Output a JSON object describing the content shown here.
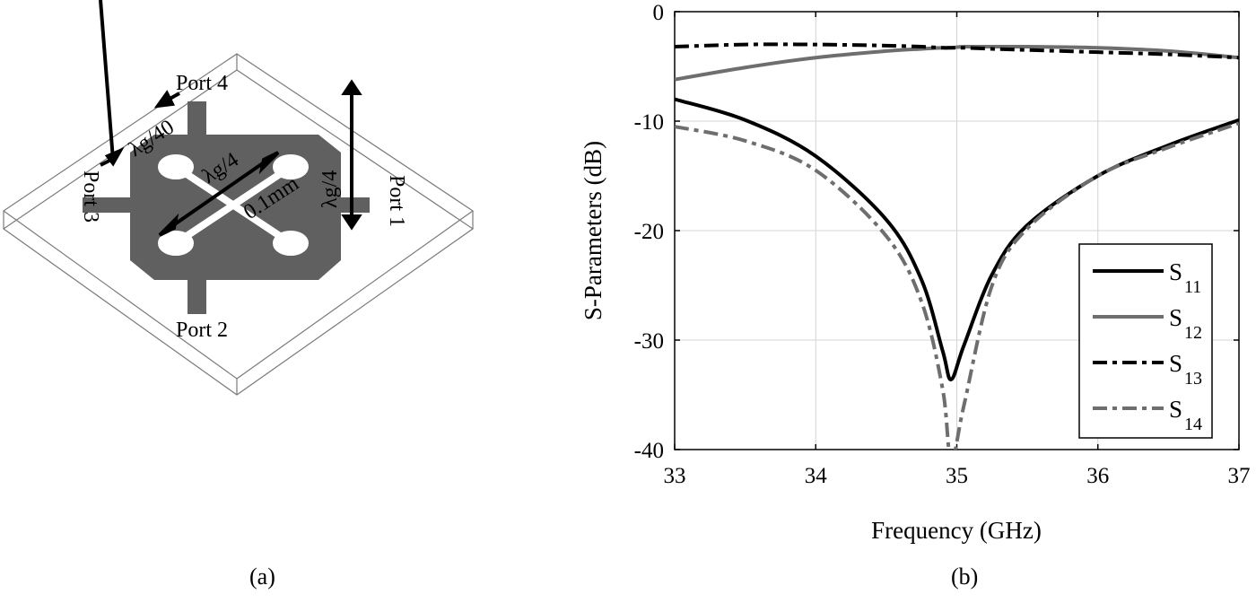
{
  "panel_a": {
    "caption": "(a)",
    "labels": {
      "port1": "Port 1",
      "port2": "Port 2",
      "port3": "Port 3",
      "port4": "Port 4",
      "stub_width": "λg/40",
      "slot_length": "λg/4",
      "side_length": "λg/4",
      "slot_width": "0.1mm"
    },
    "colors": {
      "metal": "#606060",
      "substrate_edge": "#7a7a7a"
    }
  },
  "panel_b": {
    "caption": "(b)"
  },
  "chart_data": {
    "type": "line",
    "title": "",
    "xlabel": "Frequency (GHz)",
    "ylabel": "S-Parameters (dB)",
    "xlim": [
      33,
      37
    ],
    "ylim": [
      -40,
      0
    ],
    "xticks": [
      33,
      34,
      35,
      36,
      37
    ],
    "yticks": [
      0,
      -10,
      -20,
      -30,
      -40
    ],
    "grid": true,
    "legend_position": "lower right",
    "x": [
      33,
      33.5,
      34,
      34.5,
      34.75,
      34.9,
      34.96,
      35.05,
      35.25,
      35.5,
      36,
      36.5,
      37
    ],
    "series": [
      {
        "name": "S11",
        "label_main": "S",
        "label_sub": "11",
        "color": "#000000",
        "style": "solid",
        "values": [
          -8.0,
          -9.9,
          -13.2,
          -19.0,
          -24.5,
          -31.0,
          -33.6,
          -30.5,
          -24.0,
          -19.5,
          -15.0,
          -12.2,
          -9.9
        ]
      },
      {
        "name": "S12",
        "label_main": "S",
        "label_sub": "12",
        "color": "#6e6e6e",
        "style": "solid",
        "values": [
          -6.2,
          -5.1,
          -4.2,
          -3.6,
          -3.4,
          -3.3,
          -3.3,
          -3.2,
          -3.2,
          -3.2,
          -3.3,
          -3.6,
          -4.2
        ]
      },
      {
        "name": "S13",
        "label_main": "S",
        "label_sub": "13",
        "color": "#000000",
        "style": "dash-dot",
        "values": [
          -3.2,
          -3.0,
          -3.0,
          -3.1,
          -3.2,
          -3.3,
          -3.3,
          -3.3,
          -3.4,
          -3.5,
          -3.7,
          -3.9,
          -4.2
        ]
      },
      {
        "name": "S14",
        "label_main": "S",
        "label_sub": "14",
        "color": "#6e6e6e",
        "style": "dash-dot",
        "values": [
          -10.5,
          -11.8,
          -14.5,
          -20.5,
          -26.5,
          -34.5,
          -41.0,
          -36.0,
          -25.0,
          -19.8,
          -15.0,
          -12.4,
          -10.2
        ]
      }
    ]
  }
}
